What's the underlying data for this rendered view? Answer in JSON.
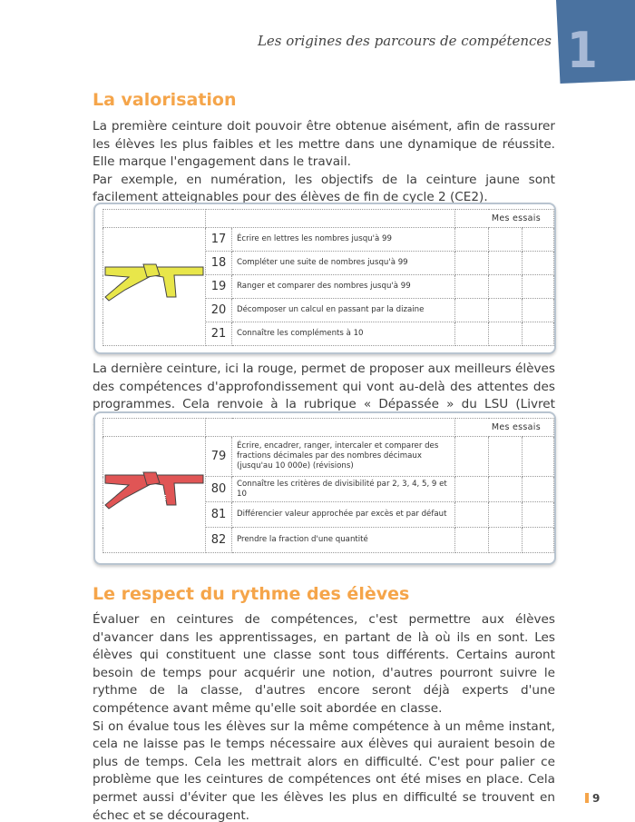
{
  "header": {
    "running_title": "Les origines des parcours de compétences",
    "chapter_number": "1",
    "chapter_color": "#4a72a0"
  },
  "section1": {
    "title": "La valorisation",
    "paragraphs": [
      "La première ceinture doit pouvoir être obtenue aisément, afin de rassurer les élèves les plus faibles et les mettre dans une dynamique de réussite. Elle marque l'engagement dans le travail.",
      "Par exemple, en numération, les objectifs de la ceinture jaune sont facilement atteignables pour des élèves de fin de cycle 2 (CE2)."
    ],
    "table": {
      "belt_label": "JAUNE",
      "belt_color": "#e8e64a",
      "header": "Mes essais",
      "rows": [
        {
          "num": "17",
          "text": "Écrire en lettres les nombres jusqu'à 99"
        },
        {
          "num": "18",
          "text": "Compléter une suite de nombres jusqu'à 99"
        },
        {
          "num": "19",
          "text": "Ranger et comparer des nombres jusqu'à 99"
        },
        {
          "num": "20",
          "text": "Décomposer un calcul en passant par la dizaine"
        },
        {
          "num": "21",
          "text": "Connaître les compléments à 10"
        }
      ]
    },
    "paragraph_after": "La dernière ceinture, ici la rouge, permet de proposer aux meilleurs élèves des compétences d'approfondissement qui vont au-delà des attentes des programmes. Cela renvoie à la rubrique « Dépassée » du LSU (Livret Scolaire Unique).",
    "table2": {
      "belt_label": "ROUGE",
      "belt_color": "#e05555",
      "header": "Mes essais",
      "rows": [
        {
          "num": "79",
          "text": "Écrire, encadrer, ranger, intercaler et comparer des fractions décimales par des nombres décimaux (jusqu'au 10 000e) (révisions)"
        },
        {
          "num": "80",
          "text": "Connaître les critères de divisibilité par 2, 3, 4, 5, 9 et 10"
        },
        {
          "num": "81",
          "text": "Différencier valeur approchée par excès et par défaut"
        },
        {
          "num": "82",
          "text": "Prendre la fraction d'une quantité"
        }
      ]
    }
  },
  "section2": {
    "title": "Le respect du rythme des élèves",
    "paragraphs": [
      "Évaluer en ceintures de compétences, c'est permettre aux élèves d'avancer dans les apprentissages, en partant de là où ils en sont. Les élèves qui constituent une classe sont tous différents. Certains auront besoin de temps pour acquérir une notion, d'autres pourront suivre le rythme de la classe, d'autres encore seront déjà experts d'une compétence avant même qu'elle soit abordée en classe.",
      "Si on évalue tous les élèves sur la même compétence à un même instant, cela ne laisse pas le temps nécessaire aux élèves qui auraient besoin de plus de temps. Cela les mettrait alors en difficulté. C'est pour palier ce problème que les ceintures de compétences ont été mises en place. Cela permet aussi d'éviter que les élèves les plus en difficulté se trouvent en échec et se découragent."
    ]
  },
  "footer": {
    "page_number": "9",
    "accent": "#f5a54a"
  }
}
